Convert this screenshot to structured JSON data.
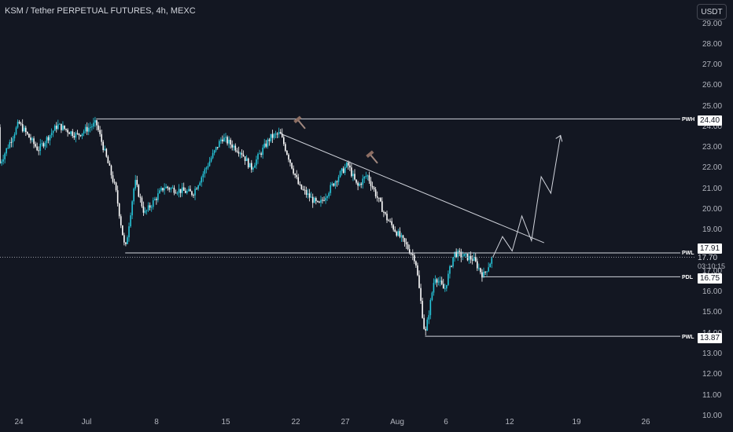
{
  "header": {
    "title": "KSM / Tether PERPETUAL FUTURES, 4h, MEXC"
  },
  "axis": {
    "currency": "USDT",
    "price_ticks": [
      "29.00",
      "28.00",
      "27.00",
      "26.00",
      "25.00",
      "24.00",
      "23.00",
      "22.00",
      "21.00",
      "20.00",
      "19.00",
      "18.00",
      "17.00",
      "16.00",
      "15.00",
      "14.00",
      "13.00",
      "12.00",
      "11.00",
      "10.00"
    ],
    "time_ticks": [
      "24",
      "Jul",
      "8",
      "15",
      "22",
      "27",
      "Aug",
      "6",
      "12",
      "19",
      "26"
    ]
  },
  "levels": [
    {
      "label": "PWH",
      "price": "24.40"
    },
    {
      "label": "PWL",
      "price": "13.87"
    },
    {
      "label": "PDL",
      "price": "16.75"
    },
    {
      "label": "PWL",
      "price": "17.91"
    }
  ],
  "current": {
    "price": "17.70",
    "countdown": "03:10:15"
  },
  "colors": {
    "bull": "#26c6da",
    "bear": "#ffffff",
    "background": "#131722",
    "line": "#d1d4dc",
    "hammer": "#a1887f"
  },
  "chart_data": {
    "type": "candlestick",
    "title": "KSM / Tether PERPETUAL FUTURES, 4h, MEXC",
    "ylim": [
      10.0,
      29.0
    ],
    "price_path": [
      {
        "x": "Jun 20",
        "y": 24.0
      },
      {
        "x": "Jun 22",
        "y": 22.2
      },
      {
        "x": "Jun 24",
        "y": 24.2
      },
      {
        "x": "Jun 26",
        "y": 22.9
      },
      {
        "x": "Jun 28",
        "y": 24.1
      },
      {
        "x": "Jun 30",
        "y": 23.6
      },
      {
        "x": "Jul 2",
        "y": 24.2
      },
      {
        "x": "Jul 3",
        "y": 22.6
      },
      {
        "x": "Jul 4",
        "y": 21.0
      },
      {
        "x": "Jul 5",
        "y": 18.0
      },
      {
        "x": "Jul 6",
        "y": 21.4
      },
      {
        "x": "Jul 7",
        "y": 19.8
      },
      {
        "x": "Jul 9",
        "y": 21.1
      },
      {
        "x": "Jul 12",
        "y": 20.8
      },
      {
        "x": "Jul 15",
        "y": 23.5
      },
      {
        "x": "Jul 17",
        "y": 22.8
      },
      {
        "x": "Jul 18",
        "y": 22.0
      },
      {
        "x": "Jul 20",
        "y": 23.5
      },
      {
        "x": "Jul 21",
        "y": 23.7
      },
      {
        "x": "Jul 23",
        "y": 21.1
      },
      {
        "x": "Jul 25",
        "y": 20.2
      },
      {
        "x": "Jul 27",
        "y": 21.6
      },
      {
        "x": "Jul 28",
        "y": 22.2
      },
      {
        "x": "Jul 29",
        "y": 21.1
      },
      {
        "x": "Jul 30",
        "y": 21.7
      },
      {
        "x": "Aug 1",
        "y": 19.6
      },
      {
        "x": "Aug 3",
        "y": 18.3
      },
      {
        "x": "Aug 4",
        "y": 17.6
      },
      {
        "x": "Aug 5",
        "y": 13.9
      },
      {
        "x": "Aug 6",
        "y": 16.8
      },
      {
        "x": "Aug 7",
        "y": 16.1
      },
      {
        "x": "Aug 8",
        "y": 17.9
      },
      {
        "x": "Aug 10",
        "y": 17.6
      },
      {
        "x": "Aug 11",
        "y": 16.8
      },
      {
        "x": "Aug 12",
        "y": 17.7
      }
    ],
    "horizontal_levels": [
      {
        "label": "PWH",
        "value": 24.4,
        "from": "Jul 2"
      },
      {
        "label": "PWL",
        "value": 17.91,
        "from": "Jul 5"
      },
      {
        "label": "PDL",
        "value": 16.75,
        "from": "Aug 11"
      },
      {
        "label": "PWL",
        "value": 13.87,
        "from": "Aug 5"
      }
    ],
    "trendline": [
      {
        "x": "Jul 21",
        "y": 23.7
      },
      {
        "x": "Aug 16",
        "y": 18.4
      }
    ],
    "projection": [
      {
        "x": "Aug 12",
        "y": 17.7
      },
      {
        "x": "Aug 13",
        "y": 18.7
      },
      {
        "x": "Aug 14",
        "y": 18.0
      },
      {
        "x": "Aug 15",
        "y": 19.7
      },
      {
        "x": "Aug 16",
        "y": 18.5
      },
      {
        "x": "Aug 17",
        "y": 21.6
      },
      {
        "x": "Aug 18",
        "y": 20.8
      },
      {
        "x": "Aug 19",
        "y": 23.6
      }
    ],
    "current_price": 17.7
  }
}
